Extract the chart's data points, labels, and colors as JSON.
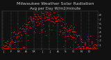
{
  "title": "Milwaukee Weather Solar Radiation",
  "subtitle": "Avg per Day W/m2/minute",
  "title_fontsize": 4.5,
  "background_color": "#111111",
  "plot_bg_color": "#111111",
  "dot_color": "#ff0000",
  "black_dot_color": "#000000",
  "grid_color": "#777777",
  "tick_color": "#cccccc",
  "label_color": "#cccccc",
  "y_min": 0,
  "y_max": 0.9,
  "y_ticks": [
    0.1,
    0.2,
    0.3,
    0.4,
    0.5,
    0.6,
    0.7,
    0.8
  ],
  "y_tick_labels": [
    ".1",
    ".2",
    ".3",
    ".4",
    ".5",
    ".6",
    ".7",
    ".8"
  ],
  "month_days": [
    0,
    31,
    59,
    90,
    120,
    151,
    181,
    212,
    243,
    273,
    304,
    334
  ],
  "month_labels": [
    "J",
    "F",
    "M",
    "A",
    "M",
    "J",
    "J",
    "A",
    "S",
    "O",
    "N",
    "D"
  ],
  "seed": 99
}
